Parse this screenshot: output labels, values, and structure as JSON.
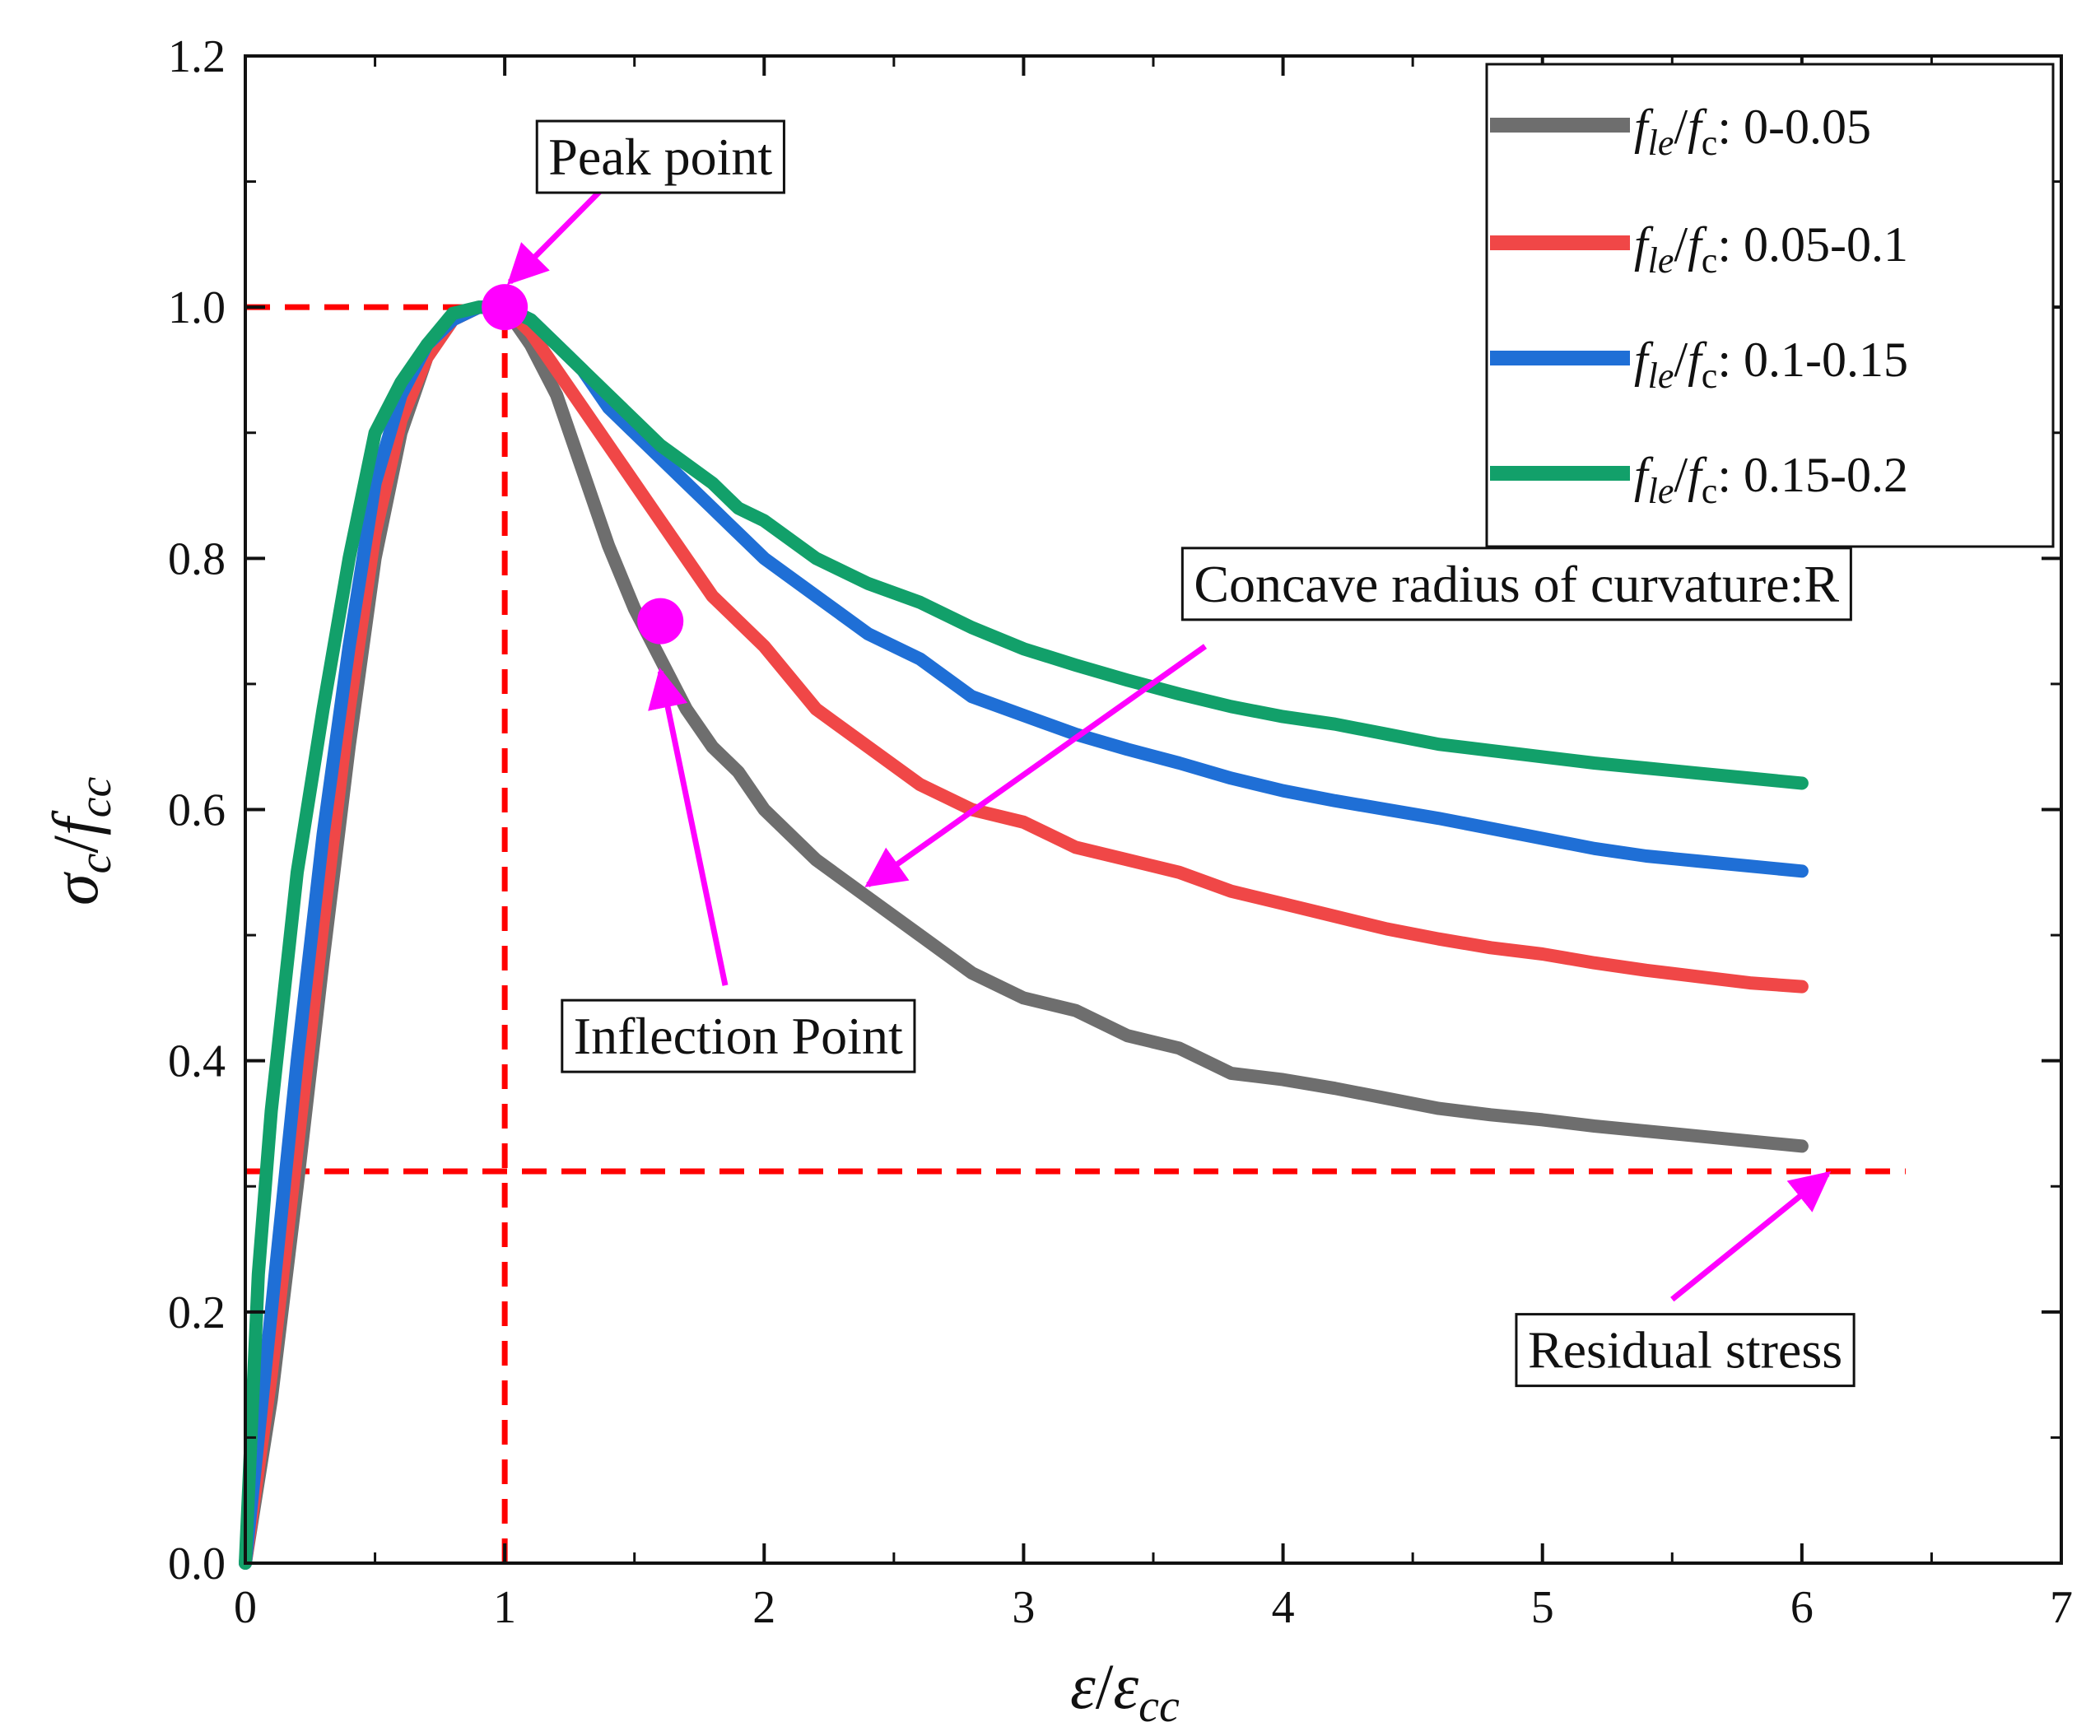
{
  "chart_data": {
    "type": "line",
    "title": "",
    "xlabel": {
      "main": "ε",
      "slash": "/",
      "denom": "ε",
      "denom_sub": "cc"
    },
    "ylabel": {
      "main": "σ",
      "main_sub": "c",
      "slash": "/",
      "denom": "f",
      "denom_sub": "cc"
    },
    "xlim": [
      0,
      7
    ],
    "ylim": [
      0,
      1.2
    ],
    "xticks": [
      "0",
      "1",
      "2",
      "3",
      "4",
      "5",
      "6",
      "7"
    ],
    "yticks": [
      "0.0",
      "0.2",
      "0.4",
      "0.6",
      "0.8",
      "1.0",
      "1.2"
    ],
    "grid": false,
    "legend_position": "top-right",
    "series": [
      {
        "name": "f_le/f_c: 0-0.05",
        "legend": {
          "f1": "f",
          "sub1": "le",
          "slash": "/",
          "f2": "f",
          "sub2": "c",
          "range": ": 0-0.05"
        },
        "color": "#6e6e6e",
        "x": [
          0,
          0.1,
          0.2,
          0.3,
          0.4,
          0.5,
          0.6,
          0.7,
          0.8,
          0.9,
          1.0,
          1.1,
          1.2,
          1.3,
          1.4,
          1.5,
          1.6,
          1.7,
          1.8,
          1.9,
          2.0,
          2.2,
          2.4,
          2.6,
          2.8,
          3.0,
          3.2,
          3.4,
          3.6,
          3.8,
          4.0,
          4.2,
          4.4,
          4.6,
          4.8,
          5.0,
          5.2,
          5.4,
          5.6,
          5.8,
          6.0
        ],
        "values": [
          0,
          0.13,
          0.3,
          0.48,
          0.65,
          0.8,
          0.9,
          0.96,
          0.99,
          1.0,
          1.0,
          0.97,
          0.93,
          0.87,
          0.81,
          0.76,
          0.72,
          0.68,
          0.65,
          0.63,
          0.6,
          0.56,
          0.53,
          0.5,
          0.47,
          0.45,
          0.44,
          0.42,
          0.41,
          0.39,
          0.385,
          0.378,
          0.37,
          0.362,
          0.357,
          0.353,
          0.348,
          0.344,
          0.34,
          0.336,
          0.332
        ]
      },
      {
        "name": "f_le/f_c: 0.05-0.1",
        "legend": {
          "f1": "f",
          "sub1": "le",
          "slash": "/",
          "f2": "f",
          "sub2": "c",
          "range": ": 0.05-0.1"
        },
        "color": "#f04747",
        "x": [
          0,
          0.1,
          0.2,
          0.3,
          0.4,
          0.5,
          0.6,
          0.7,
          0.8,
          0.9,
          1.0,
          1.1,
          1.2,
          1.3,
          1.4,
          1.5,
          1.6,
          1.7,
          1.8,
          1.9,
          2.0,
          2.2,
          2.4,
          2.6,
          2.8,
          3.0,
          3.2,
          3.4,
          3.6,
          3.8,
          4.0,
          4.2,
          4.4,
          4.6,
          4.8,
          5.0,
          5.2,
          5.4,
          5.6,
          5.8,
          6.0
        ],
        "values": [
          0,
          0.15,
          0.33,
          0.51,
          0.68,
          0.82,
          0.91,
          0.96,
          0.99,
          1.0,
          1.0,
          0.98,
          0.95,
          0.92,
          0.89,
          0.86,
          0.83,
          0.8,
          0.77,
          0.75,
          0.73,
          0.68,
          0.65,
          0.62,
          0.6,
          0.59,
          0.57,
          0.56,
          0.55,
          0.535,
          0.525,
          0.515,
          0.505,
          0.497,
          0.49,
          0.485,
          0.478,
          0.472,
          0.467,
          0.462,
          0.459
        ]
      },
      {
        "name": "f_le/f_c: 0.1-0.15",
        "legend": {
          "f1": "f",
          "sub1": "le",
          "slash": "/",
          "f2": "f",
          "sub2": "c",
          "range": ": 0.1-0.15"
        },
        "color": "#1f6fd6",
        "x": [
          0,
          0.1,
          0.2,
          0.3,
          0.4,
          0.5,
          0.6,
          0.7,
          0.8,
          0.9,
          1.0,
          1.1,
          1.2,
          1.3,
          1.4,
          1.5,
          1.6,
          1.7,
          1.8,
          1.9,
          2.0,
          2.2,
          2.4,
          2.6,
          2.8,
          3.0,
          3.2,
          3.4,
          3.6,
          3.8,
          4.0,
          4.2,
          4.4,
          4.6,
          4.8,
          5.0,
          5.2,
          5.4,
          5.6,
          5.8,
          6.0
        ],
        "values": [
          0,
          0.2,
          0.4,
          0.58,
          0.73,
          0.86,
          0.93,
          0.97,
          0.99,
          1.0,
          1.0,
          0.99,
          0.97,
          0.95,
          0.92,
          0.9,
          0.88,
          0.86,
          0.84,
          0.82,
          0.8,
          0.77,
          0.74,
          0.72,
          0.69,
          0.675,
          0.66,
          0.648,
          0.637,
          0.625,
          0.615,
          0.607,
          0.6,
          0.593,
          0.585,
          0.577,
          0.569,
          0.563,
          0.559,
          0.555,
          0.551
        ]
      },
      {
        "name": "f_le/f_c: 0.15-0.2",
        "legend": {
          "f1": "f",
          "sub1": "le",
          "slash": "/",
          "f2": "f",
          "sub2": "c",
          "range": ": 0.15-0.2"
        },
        "color": "#12a06a",
        "x": [
          0,
          0.05,
          0.1,
          0.2,
          0.3,
          0.4,
          0.5,
          0.6,
          0.7,
          0.8,
          0.9,
          1.0,
          1.1,
          1.2,
          1.3,
          1.4,
          1.5,
          1.6,
          1.7,
          1.8,
          1.9,
          2.0,
          2.2,
          2.4,
          2.6,
          2.8,
          3.0,
          3.2,
          3.4,
          3.6,
          3.8,
          4.0,
          4.2,
          4.4,
          4.6,
          4.8,
          5.0,
          5.2,
          5.4,
          5.6,
          5.8,
          6.0
        ],
        "values": [
          0,
          0.23,
          0.36,
          0.55,
          0.68,
          0.8,
          0.9,
          0.94,
          0.97,
          0.995,
          1.0,
          1.0,
          0.99,
          0.97,
          0.95,
          0.93,
          0.91,
          0.89,
          0.875,
          0.86,
          0.84,
          0.83,
          0.8,
          0.78,
          0.765,
          0.745,
          0.728,
          0.715,
          0.703,
          0.692,
          0.682,
          0.674,
          0.668,
          0.66,
          0.652,
          0.647,
          0.642,
          0.637,
          0.633,
          0.629,
          0.625,
          0.621
        ]
      }
    ],
    "reference_lines": [
      {
        "orientation": "horizontal",
        "value": 1.0,
        "from": 0,
        "to": 1.0,
        "color": "#ff0000"
      },
      {
        "orientation": "vertical",
        "value": 1.0,
        "from": 0,
        "to": 1.0,
        "color": "#ff0000"
      },
      {
        "orientation": "horizontal",
        "value": 0.312,
        "from": 0,
        "to": 6.4,
        "color": "#ff0000"
      }
    ],
    "markers": [
      {
        "label": "peak",
        "x": 1.0,
        "y": 1.0,
        "color": "#ff00ff"
      },
      {
        "label": "inflection",
        "x": 1.6,
        "y": 0.75,
        "color": "#ff00ff"
      }
    ],
    "annotations": [
      {
        "text": "Peak point",
        "box_at": [
          1.6,
          1.12
        ],
        "arrow_from": [
          1.5,
          1.12
        ],
        "arrow_to": [
          1.02,
          1.02
        ]
      },
      {
        "text": "Inflection Point",
        "box_at": [
          1.9,
          0.42
        ],
        "arrow_from": [
          1.85,
          0.46
        ],
        "arrow_to": [
          1.6,
          0.71
        ]
      },
      {
        "text": "Concave radius of curvature:R",
        "box_at": [
          4.9,
          0.78
        ],
        "arrow_from": [
          3.7,
          0.73
        ],
        "arrow_to": [
          2.4,
          0.54
        ]
      },
      {
        "text": "Residual stress",
        "box_at": [
          5.55,
          0.17
        ],
        "arrow_from": [
          5.5,
          0.21
        ],
        "arrow_to": [
          6.1,
          0.31
        ]
      }
    ],
    "annotation_color": "#ff00ff"
  }
}
